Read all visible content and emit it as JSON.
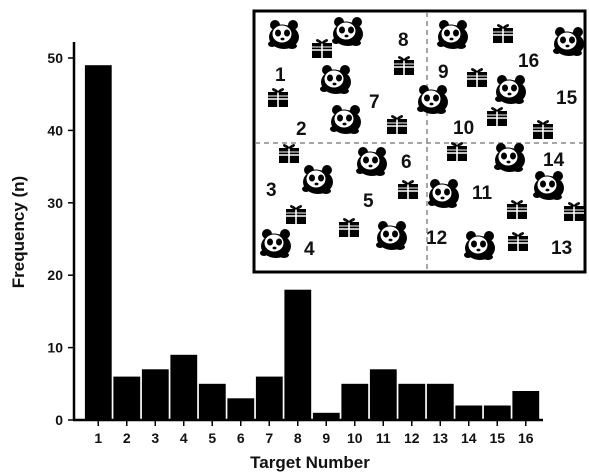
{
  "chart_data": {
    "type": "bar",
    "xlabel": "Target Number",
    "ylabel": "Frequency (n)",
    "categories": [
      "1",
      "2",
      "3",
      "4",
      "5",
      "6",
      "7",
      "8",
      "9",
      "10",
      "11",
      "12",
      "13",
      "14",
      "15",
      "16"
    ],
    "values": [
      49,
      6,
      7,
      9,
      5,
      3,
      6,
      18,
      1,
      5,
      7,
      5,
      5,
      2,
      2,
      4
    ],
    "ylim": [
      0,
      52
    ],
    "yticks": [
      0,
      10,
      20,
      30,
      40,
      50
    ],
    "bar_color": "#000000",
    "grid": false,
    "inset": {
      "description_type": "arena map divided into four quadrants by dashed lines",
      "target_labels": [
        "1",
        "2",
        "3",
        "4",
        "5",
        "6",
        "7",
        "8",
        "9",
        "10",
        "11",
        "12",
        "13",
        "14",
        "15",
        "16"
      ],
      "panda_icon": "panda-icon",
      "gift_icon": "gift-box-icon"
    }
  }
}
